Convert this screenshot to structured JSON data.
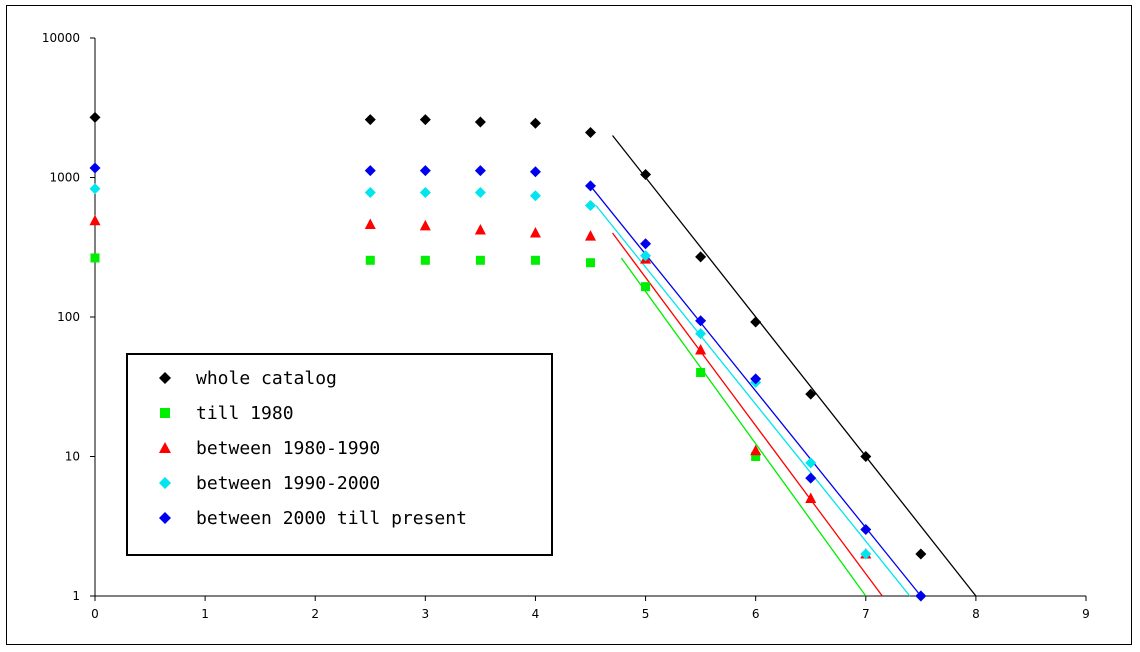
{
  "chart_data": {
    "type": "scatter",
    "title": "",
    "xlabel": "",
    "ylabel": "",
    "xlim": [
      0,
      9
    ],
    "ylim": [
      1,
      10000
    ],
    "y_scale": "log",
    "grid": false,
    "legend_position": "bottom-left",
    "x_ticks": [
      "0",
      "1",
      "2",
      "3",
      "4",
      "5",
      "6",
      "7",
      "8",
      "9"
    ],
    "y_ticks": [
      "1",
      "10",
      "100",
      "1000",
      "10000"
    ],
    "series": [
      {
        "name": "whole catalog",
        "color": "#000000",
        "marker": "diamond",
        "points": [
          [
            0,
            2700
          ],
          [
            2.5,
            2600
          ],
          [
            3,
            2600
          ],
          [
            3.5,
            2500
          ],
          [
            4,
            2450
          ],
          [
            4.5,
            2100
          ],
          [
            5,
            1050
          ],
          [
            5.5,
            270
          ],
          [
            6,
            92
          ],
          [
            6.5,
            28
          ],
          [
            7,
            10
          ],
          [
            7.5,
            2
          ]
        ],
        "fit": [
          [
            4.7,
            2000
          ],
          [
            8,
            1
          ]
        ]
      },
      {
        "name": "till 1980",
        "color": "#00ee00",
        "marker": "square",
        "points": [
          [
            0,
            265
          ],
          [
            2.5,
            255
          ],
          [
            3,
            255
          ],
          [
            3.5,
            255
          ],
          [
            4,
            255
          ],
          [
            4.5,
            245
          ],
          [
            5,
            165
          ],
          [
            5.5,
            40
          ],
          [
            6,
            10
          ]
        ],
        "fit": [
          [
            4.78,
            265
          ],
          [
            7,
            1
          ]
        ]
      },
      {
        "name": "between 1980-1990",
        "color": "#ff0000",
        "marker": "triangle",
        "points": [
          [
            0,
            490
          ],
          [
            2.5,
            460
          ],
          [
            3,
            450
          ],
          [
            3.5,
            420
          ],
          [
            4,
            400
          ],
          [
            4.5,
            380
          ],
          [
            5,
            260
          ],
          [
            5.5,
            58
          ],
          [
            6,
            11
          ],
          [
            6.5,
            5
          ],
          [
            7,
            2
          ]
        ],
        "fit": [
          [
            4.7,
            400
          ],
          [
            7.15,
            1
          ]
        ]
      },
      {
        "name": "between 1990-2000",
        "color": "#00e5ee",
        "marker": "diamond",
        "points": [
          [
            0,
            830
          ],
          [
            2.5,
            780
          ],
          [
            3,
            780
          ],
          [
            3.5,
            780
          ],
          [
            4,
            740
          ],
          [
            4.5,
            630
          ],
          [
            5,
            275
          ],
          [
            5.5,
            76
          ],
          [
            6,
            34
          ],
          [
            6.5,
            9
          ],
          [
            7,
            2
          ],
          [
            7.5,
            1
          ]
        ],
        "fit": [
          [
            4.55,
            630
          ],
          [
            7.4,
            1
          ]
        ]
      },
      {
        "name": "between 2000 till present",
        "color": "#0000ee",
        "marker": "diamond",
        "points": [
          [
            0,
            1170
          ],
          [
            2.5,
            1120
          ],
          [
            3,
            1120
          ],
          [
            3.5,
            1120
          ],
          [
            4,
            1100
          ],
          [
            4.5,
            870
          ],
          [
            5,
            335
          ],
          [
            5.5,
            94
          ],
          [
            6,
            36
          ],
          [
            6.5,
            7
          ],
          [
            7,
            3
          ],
          [
            7.5,
            1
          ]
        ],
        "fit": [
          [
            4.5,
            870
          ],
          [
            7.5,
            1
          ]
        ]
      }
    ]
  }
}
